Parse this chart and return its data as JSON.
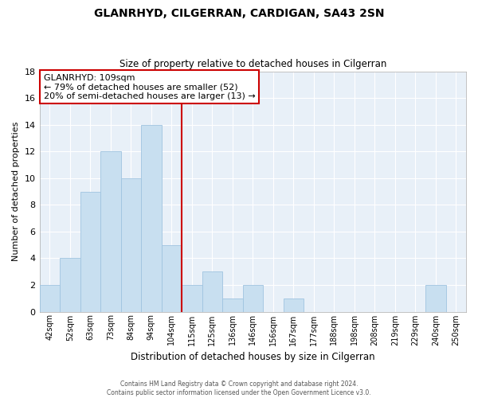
{
  "title": "GLANRHYD, CILGERRAN, CARDIGAN, SA43 2SN",
  "subtitle": "Size of property relative to detached houses in Cilgerran",
  "xlabel": "Distribution of detached houses by size in Cilgerran",
  "ylabel": "Number of detached properties",
  "bar_labels": [
    "42sqm",
    "52sqm",
    "63sqm",
    "73sqm",
    "84sqm",
    "94sqm",
    "104sqm",
    "115sqm",
    "125sqm",
    "136sqm",
    "146sqm",
    "156sqm",
    "167sqm",
    "177sqm",
    "188sqm",
    "198sqm",
    "208sqm",
    "219sqm",
    "229sqm",
    "240sqm",
    "250sqm"
  ],
  "bar_values": [
    2,
    4,
    9,
    12,
    10,
    14,
    5,
    2,
    3,
    1,
    2,
    0,
    1,
    0,
    0,
    0,
    0,
    0,
    0,
    2,
    0
  ],
  "bar_color": "#c8dff0",
  "bar_edge_color": "#a0c4e0",
  "vline_color": "#cc0000",
  "annotation_title": "GLANRHYD: 109sqm",
  "annotation_line1": "← 79% of detached houses are smaller (52)",
  "annotation_line2": "20% of semi-detached houses are larger (13) →",
  "annotation_box_color": "#ffffff",
  "annotation_box_edge": "#cc0000",
  "plot_bg_color": "#e8f0f8",
  "grid_color": "#ffffff",
  "ylim": [
    0,
    18
  ],
  "yticks": [
    0,
    2,
    4,
    6,
    8,
    10,
    12,
    14,
    16,
    18
  ],
  "footer1": "Contains HM Land Registry data © Crown copyright and database right 2024.",
  "footer2": "Contains public sector information licensed under the Open Government Licence v3.0."
}
